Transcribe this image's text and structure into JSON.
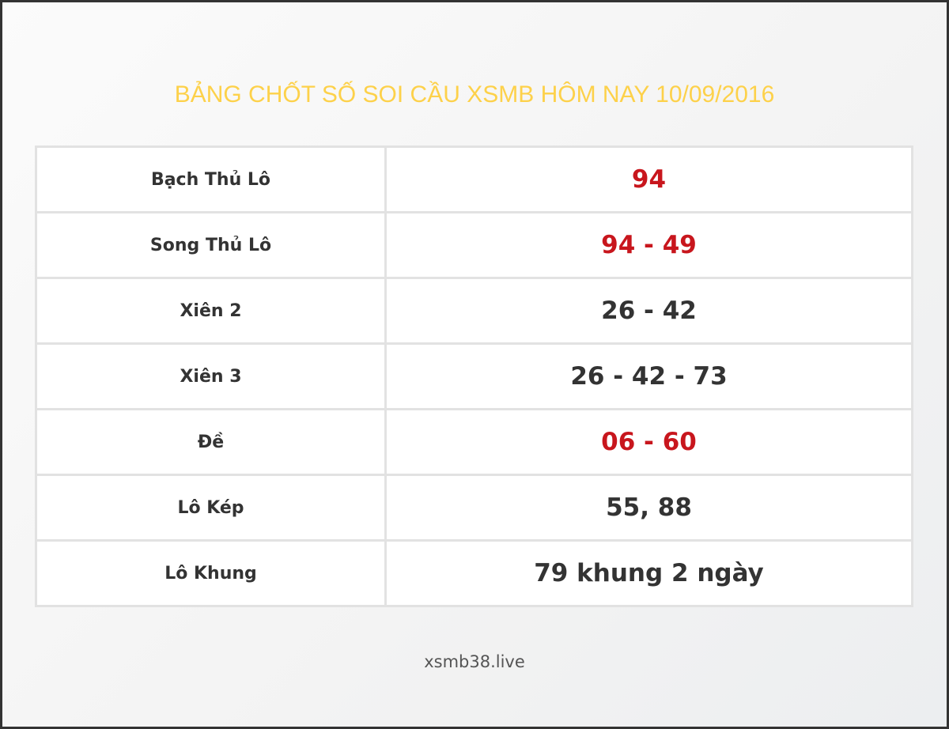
{
  "title": "BẢNG CHỐT SỐ SOI CẦU XSMB HÔM NAY 10/09/2016",
  "colors": {
    "title": "#fdd14a",
    "highlight": "#c8161d",
    "text": "#333333"
  },
  "rows": [
    {
      "label": "Bạch Thủ Lô",
      "value": "94",
      "highlight": true
    },
    {
      "label": "Song Thủ Lô",
      "value": "94 - 49",
      "highlight": true
    },
    {
      "label": "Xiên 2",
      "value": "26 - 42",
      "highlight": false
    },
    {
      "label": "Xiên 3",
      "value": "26 - 42 - 73",
      "highlight": false
    },
    {
      "label": "Đề",
      "value": "06 - 60",
      "highlight": true
    },
    {
      "label": "Lô Kép",
      "value": "55, 88",
      "highlight": false
    },
    {
      "label": "Lô Khung",
      "value": "79 khung 2 ngày",
      "highlight": false
    }
  ],
  "footer": "xsmb38.live"
}
